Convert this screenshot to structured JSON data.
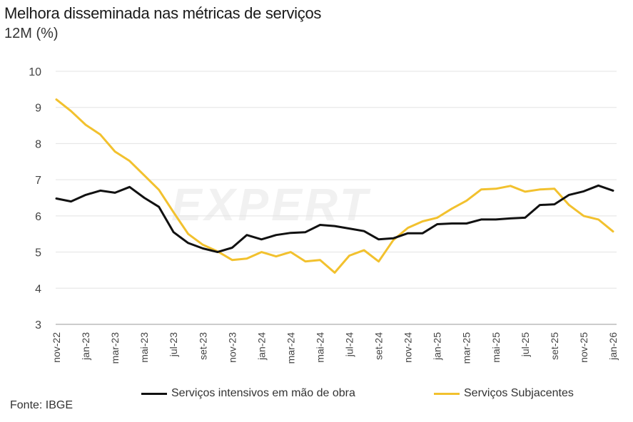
{
  "header": {
    "title": "Melhora disseminada nas métricas de serviços",
    "subtitle": "12M (%)"
  },
  "watermark": "EXPERT",
  "source": "Fonte: IBGE",
  "chart_data": {
    "type": "line",
    "title": "Melhora disseminada nas métricas de serviços",
    "subtitle": "12M (%)",
    "xlabel": "",
    "ylabel": "",
    "ylim": [
      3,
      10
    ],
    "yticks": [
      "3",
      "4",
      "5",
      "6",
      "7",
      "8",
      "9",
      "10"
    ],
    "grid": true,
    "legend_position": "bottom",
    "x": [
      "nov-22",
      "dez-22",
      "jan-23",
      "fev-23",
      "mar-23",
      "abr-23",
      "mai-23",
      "jun-23",
      "jul-23",
      "ago-23",
      "set-23",
      "out-23",
      "nov-23",
      "dez-23",
      "jan-24",
      "fev-24",
      "mar-24",
      "abr-24",
      "mai-24",
      "jun-24",
      "jul-24",
      "ago-24",
      "set-24",
      "out-24",
      "nov-24",
      "dez-24",
      "jan-25",
      "fev-25",
      "mar-25",
      "abr-25",
      "mai-25",
      "jun-25",
      "jul-25",
      "ago-25",
      "set-25",
      "out-25",
      "nov-25",
      "dez-25",
      "jan-26"
    ],
    "xtick_labels": [
      "nov-22",
      "jan-23",
      "mar-23",
      "mai-23",
      "jul-23",
      "set-23",
      "nov-23",
      "jan-24",
      "mar-24",
      "mai-24",
      "jul-24",
      "set-24",
      "nov-24",
      "jan-25",
      "mar-25",
      "mai-25",
      "jul-25",
      "set-25",
      "nov-25",
      "jan-26"
    ],
    "series": [
      {
        "name": "Serviços intensivos em mão de obra",
        "color": "#111111",
        "values": [
          6.48,
          6.4,
          6.58,
          6.7,
          6.64,
          6.8,
          6.5,
          6.25,
          5.55,
          5.25,
          5.1,
          5.0,
          5.12,
          5.47,
          5.35,
          5.47,
          5.53,
          5.55,
          5.75,
          5.72,
          5.65,
          5.58,
          5.35,
          5.38,
          5.52,
          5.52,
          5.77,
          5.79,
          5.79,
          5.9,
          5.9,
          5.93,
          5.95,
          6.3,
          6.32,
          6.58,
          6.68,
          6.84,
          6.7
        ]
      },
      {
        "name": "Serviços Subjacentes",
        "color": "#f2c12e",
        "values": [
          9.22,
          8.9,
          8.52,
          8.25,
          7.78,
          7.52,
          7.12,
          6.72,
          6.1,
          5.5,
          5.2,
          5.02,
          4.78,
          4.82,
          5.0,
          4.88,
          5.0,
          4.74,
          4.78,
          4.43,
          4.9,
          5.05,
          4.74,
          5.33,
          5.67,
          5.85,
          5.95,
          6.2,
          6.42,
          6.73,
          6.75,
          6.83,
          6.67,
          6.73,
          6.75,
          6.3,
          6.0,
          5.9,
          5.57
        ]
      }
    ]
  }
}
